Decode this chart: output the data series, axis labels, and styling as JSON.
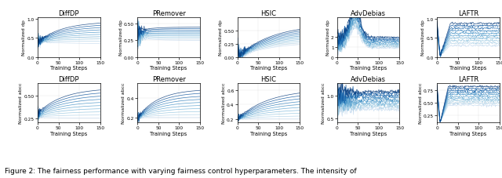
{
  "titles_row1": [
    "DiffDP",
    "PRemover",
    "HSIC",
    "AdvDebias",
    "LAFTR"
  ],
  "titles_row2": [
    "DiffDP",
    "PRemover",
    "HSIC",
    "AdvDebias",
    "LAFTR"
  ],
  "ylabel_row1": [
    "Normalized dp",
    "Normalized dp",
    "Normalized dp",
    "Normalized dp",
    "Normalized dp"
  ],
  "ylabel_row2": [
    "Normalized abcc",
    "Normalized abcc",
    "Normalized abcc",
    "Normalized abcc",
    "Normalized abcc"
  ],
  "xlabel": "Training Steps",
  "caption": "Figure 2: The fairness performance with varying fairness control hyperparameters. The intensity of",
  "x_ticks": [
    0,
    50,
    100,
    150
  ],
  "num_lines": 10,
  "background_color": "#ffffff",
  "figsize": [
    6.4,
    2.28
  ],
  "dpi": 100,
  "subplot_configs": {
    "row0": [
      {
        "ylim": [
          0.0,
          1.05
        ],
        "yticks": [
          0.0,
          0.5,
          1.0
        ],
        "pattern": "diffdp_dp"
      },
      {
        "ylim": [
          0.0,
          0.6
        ],
        "yticks": [
          0.0,
          0.25,
          0.5
        ],
        "pattern": "premover_dp"
      },
      {
        "ylim": [
          0.0,
          0.75
        ],
        "yticks": [
          0.0,
          0.25,
          0.5
        ],
        "pattern": "hsic_dp"
      },
      {
        "ylim": [
          0.0,
          4.0
        ],
        "yticks": [
          0,
          1,
          2
        ],
        "pattern": "advdebias_dp"
      },
      {
        "ylim": [
          0.0,
          1.05
        ],
        "yticks": [
          0.0,
          0.5,
          1.0
        ],
        "pattern": "laftr_dp"
      }
    ],
    "row1": [
      {
        "ylim": [
          0.2,
          0.65
        ],
        "yticks": [
          0.25,
          0.5
        ],
        "pattern": "diffdp_abcc"
      },
      {
        "ylim": [
          0.15,
          0.55
        ],
        "yticks": [
          0.2,
          0.4
        ],
        "pattern": "premover_abcc"
      },
      {
        "ylim": [
          0.15,
          0.7
        ],
        "yticks": [
          0.2,
          0.4,
          0.6
        ],
        "pattern": "hsic_abcc"
      },
      {
        "ylim": [
          0.4,
          1.3
        ],
        "yticks": [
          0.5,
          1.0
        ],
        "pattern": "advdebias_abcc"
      },
      {
        "ylim": [
          0.1,
          0.9
        ],
        "yticks": [
          0.25,
          0.5,
          0.75
        ],
        "pattern": "laftr_abcc"
      }
    ]
  }
}
